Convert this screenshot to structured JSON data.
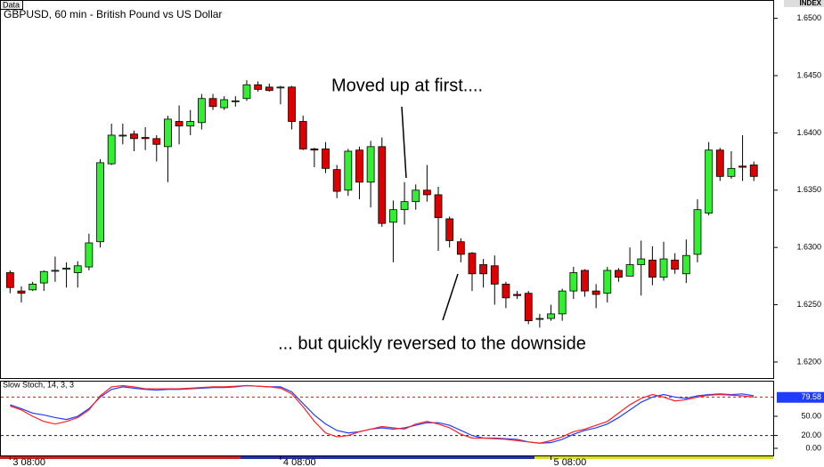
{
  "ui": {
    "data_tab": "Data",
    "index_label": "INDEX"
  },
  "chart_data": [
    {
      "type": "candlestick",
      "title": "GBPUSD, 60 min - British Pound vs US Dollar",
      "annotations": [
        "Moved up at first....",
        "... but quickly reversed to the downside"
      ],
      "categories": [
        "3 08:00",
        null,
        null,
        null,
        null,
        null,
        null,
        null,
        null,
        null,
        null,
        null,
        null,
        null,
        null,
        null,
        null,
        null,
        null,
        null,
        null,
        null,
        null,
        null,
        "4 08:00",
        null,
        null,
        null,
        null,
        null,
        null,
        null,
        null,
        null,
        null,
        null,
        null,
        null,
        null,
        null,
        null,
        null,
        null,
        null,
        null,
        null,
        null,
        null,
        "5 08:00",
        null,
        null,
        null,
        null,
        null,
        null,
        null,
        null,
        null,
        null,
        null,
        null,
        null,
        null,
        null,
        null,
        null,
        null
      ],
      "open": [
        1.6278,
        1.6262,
        1.6263,
        1.6269,
        1.628,
        1.6281,
        1.6278,
        1.6283,
        1.6305,
        1.6373,
        1.6398,
        1.6399,
        1.6396,
        1.6395,
        1.6388,
        1.641,
        1.6406,
        1.6409,
        1.643,
        1.6422,
        1.6428,
        1.643,
        1.6442,
        1.644,
        1.644,
        1.644,
        1.641,
        1.6386,
        1.6386,
        1.6368,
        1.635,
        1.6385,
        1.6357,
        1.6388,
        1.6322,
        1.6333,
        1.634,
        1.635,
        1.6346,
        1.6325,
        1.6305,
        1.6295,
        1.6285,
        1.6284,
        1.6268,
        1.6259,
        1.626,
        1.6238,
        1.6238,
        1.6242,
        1.6262,
        1.628,
        1.6262,
        1.626,
        1.628,
        1.6275,
        1.6285,
        1.6289,
        1.6274,
        1.6289,
        1.6277,
        1.6294,
        1.633,
        1.6385,
        1.6362,
        1.6371,
        1.6372
      ],
      "high": [
        1.628,
        1.6266,
        1.627,
        1.628,
        1.6292,
        1.6287,
        1.6288,
        1.6312,
        1.6377,
        1.6408,
        1.6408,
        1.6402,
        1.6405,
        1.6398,
        1.6415,
        1.6424,
        1.642,
        1.6434,
        1.6434,
        1.6432,
        1.6432,
        1.6446,
        1.6445,
        1.6443,
        1.6441,
        1.6441,
        1.6415,
        1.6387,
        1.6392,
        1.6372,
        1.6386,
        1.6388,
        1.6393,
        1.6396,
        1.6341,
        1.6357,
        1.6355,
        1.6372,
        1.6353,
        1.6327,
        1.6308,
        1.6296,
        1.629,
        1.6293,
        1.627,
        1.6262,
        1.6262,
        1.6242,
        1.625,
        1.6264,
        1.6283,
        1.6281,
        1.6268,
        1.6283,
        1.6282,
        1.63,
        1.6306,
        1.6301,
        1.6305,
        1.6295,
        1.6307,
        1.6342,
        1.6392,
        1.6387,
        1.6384,
        1.6398,
        1.6375
      ],
      "low": [
        1.626,
        1.6252,
        1.6262,
        1.6262,
        1.627,
        1.6265,
        1.6265,
        1.628,
        1.63,
        1.6372,
        1.639,
        1.6384,
        1.6385,
        1.6375,
        1.6357,
        1.639,
        1.6398,
        1.6403,
        1.642,
        1.642,
        1.6423,
        1.6428,
        1.6436,
        1.6436,
        1.6425,
        1.6403,
        1.6385,
        1.637,
        1.6365,
        1.6343,
        1.6345,
        1.6342,
        1.6335,
        1.6318,
        1.6287,
        1.632,
        1.6333,
        1.634,
        1.6297,
        1.63,
        1.6287,
        1.6262,
        1.6265,
        1.625,
        1.6247,
        1.6255,
        1.6233,
        1.623,
        1.6236,
        1.6236,
        1.6255,
        1.6257,
        1.6247,
        1.6252,
        1.627,
        1.6275,
        1.6258,
        1.6267,
        1.6271,
        1.6277,
        1.6269,
        1.6287,
        1.6328,
        1.6358,
        1.636,
        1.6358,
        1.6358
      ],
      "close": [
        1.6265,
        1.626,
        1.6268,
        1.6279,
        1.628,
        1.6282,
        1.6284,
        1.6304,
        1.6374,
        1.6398,
        1.6398,
        1.6395,
        1.6395,
        1.639,
        1.6412,
        1.6406,
        1.641,
        1.643,
        1.6423,
        1.6429,
        1.6428,
        1.6442,
        1.6438,
        1.6437,
        1.644,
        1.641,
        1.6386,
        1.6385,
        1.6369,
        1.6349,
        1.6384,
        1.6357,
        1.6388,
        1.6321,
        1.6333,
        1.634,
        1.635,
        1.6346,
        1.6326,
        1.6306,
        1.6294,
        1.6277,
        1.6277,
        1.6268,
        1.6256,
        1.6258,
        1.6236,
        1.6238,
        1.6242,
        1.6262,
        1.6278,
        1.6262,
        1.6259,
        1.628,
        1.6274,
        1.6285,
        1.629,
        1.6274,
        1.629,
        1.6281,
        1.6293,
        1.6333,
        1.6385,
        1.6362,
        1.6369,
        1.637,
        1.6362
      ],
      "up_color": "#33ee33",
      "down_color": "#dd0000",
      "ylim": [
        1.6186,
        1.6516
      ],
      "yticks": [
        {
          "value": 1.62,
          "label": "1.6200"
        },
        {
          "value": 1.625,
          "label": "1.6250"
        },
        {
          "value": 1.63,
          "label": "1.6300"
        },
        {
          "value": 1.635,
          "label": "1.6350"
        },
        {
          "value": 1.64,
          "label": "1.6400"
        },
        {
          "value": 1.645,
          "label": "1.6450"
        },
        {
          "value": 1.65,
          "label": "1.6500"
        }
      ]
    },
    {
      "type": "line",
      "title": "Slow Stoch, 14, 3, 3",
      "series": [
        {
          "color": "#1f3cff",
          "values": [
            68,
            62,
            55,
            52,
            48,
            45,
            50,
            62,
            80,
            92,
            96,
            94,
            92,
            91,
            92,
            92,
            93,
            94,
            95,
            95,
            96,
            98,
            97,
            96,
            96,
            88,
            70,
            52,
            38,
            28,
            24,
            26,
            30,
            32,
            30,
            32,
            36,
            40,
            40,
            36,
            28,
            20,
            16,
            16,
            15,
            14,
            10,
            8,
            9,
            14,
            22,
            28,
            32,
            38,
            48,
            60,
            72,
            80,
            84,
            80,
            78,
            82,
            84,
            85,
            84,
            85,
            82
          ]
        },
        {
          "color": "#ff2020",
          "values": [
            66,
            60,
            50,
            42,
            38,
            42,
            48,
            60,
            82,
            96,
            98,
            96,
            93,
            93,
            93,
            93,
            94,
            95,
            96,
            96,
            97,
            98,
            97,
            96,
            94,
            85,
            65,
            42,
            24,
            18,
            20,
            26,
            30,
            34,
            32,
            30,
            38,
            42,
            38,
            32,
            22,
            16,
            16,
            15,
            14,
            12,
            10,
            8,
            12,
            18,
            26,
            30,
            36,
            42,
            55,
            68,
            78,
            84,
            80,
            74,
            76,
            80,
            83,
            84,
            83,
            82,
            80
          ]
        }
      ],
      "levels": [
        {
          "value": 80,
          "color": "#ff0000"
        },
        {
          "value": 20,
          "color": "#0000ff"
        }
      ],
      "current": {
        "value": 79.58,
        "label": "79.58"
      },
      "ylim": [
        -12.5,
        105.6
      ],
      "yticks": [
        {
          "value": 50,
          "label": "50.00"
        },
        {
          "value": 20,
          "label": "20.00"
        },
        {
          "value": 0,
          "label": "0.00"
        }
      ]
    }
  ]
}
